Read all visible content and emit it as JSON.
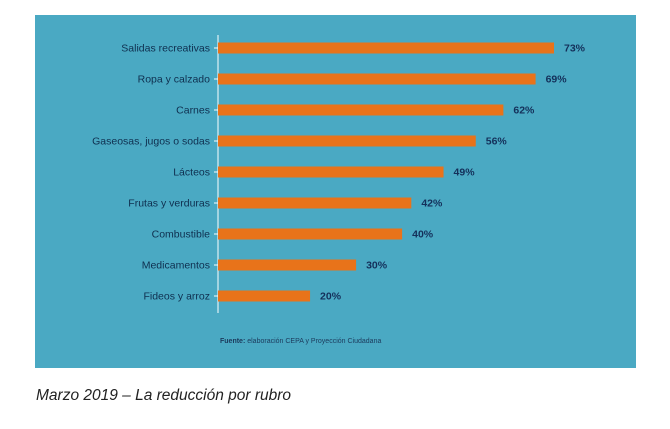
{
  "chart_data": {
    "type": "bar",
    "orientation": "horizontal",
    "categories": [
      "Salidas recreativas",
      "Ropa y calzado",
      "Carnes",
      "Gaseosas, jugos o sodas",
      "Lácteos",
      "Frutas y verduras",
      "Combustible",
      "Medicamentos",
      "Fideos y arroz"
    ],
    "values": [
      73,
      69,
      62,
      56,
      49,
      42,
      40,
      30,
      20
    ],
    "value_labels": [
      "73%",
      "69%",
      "62%",
      "56%",
      "49%",
      "42%",
      "40%",
      "30%",
      "20%"
    ],
    "xlim": [
      0,
      100
    ],
    "unit": "%",
    "bar_color": "#e8731a",
    "background_color": "#4aa9c3"
  },
  "source": {
    "label": "Fuente:",
    "text": "elaboración CEPA y Proyección Ciudadana"
  },
  "caption": "Marzo 2019 – La reducción por rubro"
}
